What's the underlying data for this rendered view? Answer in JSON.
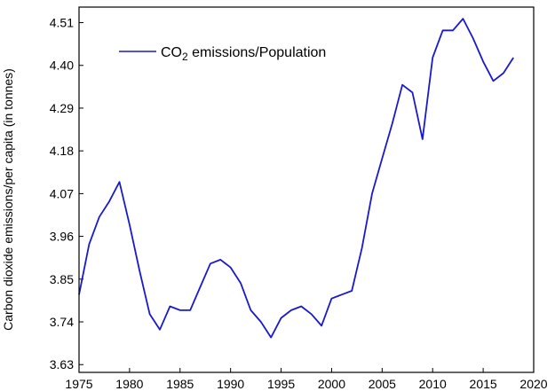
{
  "chart_data": {
    "type": "line",
    "title": "",
    "xlabel": "",
    "ylabel": "Carbon dioxide emissions/per capita (in tonnes)",
    "xlim": [
      1975,
      2020
    ],
    "ylim": [
      3.61,
      4.55
    ],
    "x_ticks": [
      1975,
      1980,
      1985,
      1990,
      1995,
      2000,
      2005,
      2010,
      2015,
      2020
    ],
    "y_ticks": [
      3.63,
      3.74,
      3.85,
      3.96,
      4.07,
      4.18,
      4.29,
      4.4,
      4.51
    ],
    "y_tick_labels": [
      "3.63",
      "3.74",
      "3.85",
      "3.96",
      "4.07",
      "4.18",
      "4.29",
      "4.40",
      "4.51"
    ],
    "grid": false,
    "legend": {
      "position": "top-left",
      "co_text": "CO",
      "sub_text": "2",
      "rest_text": " emissions/Population"
    },
    "series": [
      {
        "name": "CO2 emissions/Population",
        "color": "#1a1acc",
        "x": [
          1975,
          1976,
          1977,
          1978,
          1979,
          1980,
          1981,
          1982,
          1983,
          1984,
          1985,
          1986,
          1987,
          1988,
          1989,
          1990,
          1991,
          1992,
          1993,
          1994,
          1995,
          1996,
          1997,
          1998,
          1999,
          2000,
          2001,
          2002,
          2003,
          2004,
          2005,
          2006,
          2007,
          2008,
          2009,
          2010,
          2011,
          2012,
          2013,
          2014,
          2015,
          2016,
          2017,
          2018
        ],
        "y": [
          3.81,
          3.94,
          4.01,
          4.05,
          4.1,
          3.99,
          3.87,
          3.76,
          3.72,
          3.78,
          3.77,
          3.77,
          3.83,
          3.89,
          3.9,
          3.88,
          3.84,
          3.77,
          3.74,
          3.7,
          3.75,
          3.77,
          3.78,
          3.76,
          3.73,
          3.8,
          3.81,
          3.82,
          3.93,
          4.07,
          4.16,
          4.25,
          4.35,
          4.33,
          4.21,
          4.42,
          4.49,
          4.49,
          4.52,
          4.47,
          4.41,
          4.36,
          4.38,
          4.42
        ]
      }
    ]
  }
}
